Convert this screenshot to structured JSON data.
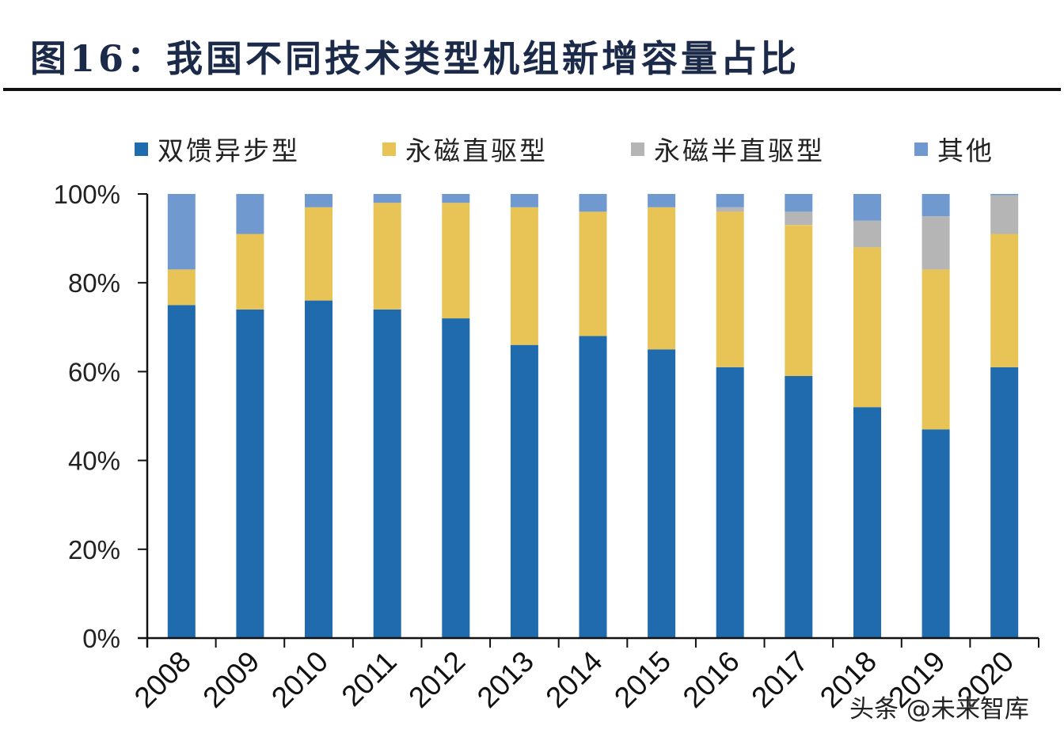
{
  "title": "图16：我国不同技术类型机组新增容量占比",
  "watermark": "头条 @未来智库",
  "colors": {
    "series": [
      "#1f6bad",
      "#e8c457",
      "#b5b5b5",
      "#7099d0"
    ],
    "axis": "#111111",
    "title": "#1b2a49"
  },
  "chart_data": {
    "type": "bar",
    "stacked": true,
    "title": "图16：我国不同技术类型机组新增容量占比",
    "xlabel": "",
    "ylabel": "",
    "ylim": [
      0,
      100
    ],
    "y_ticks": [
      "0%",
      "20%",
      "40%",
      "60%",
      "80%",
      "100%"
    ],
    "y_tick_values": [
      0,
      20,
      40,
      60,
      80,
      100
    ],
    "grid": false,
    "legend_position": "top",
    "categories": [
      "2008",
      "2009",
      "2010",
      "2011",
      "2012",
      "2013",
      "2014",
      "2015",
      "2016",
      "2017",
      "2018",
      "2019",
      "2020"
    ],
    "series": [
      {
        "name": "双馈异步型",
        "values": [
          75,
          74,
          76,
          74,
          72,
          66,
          68,
          65,
          61,
          59,
          52,
          47,
          61
        ]
      },
      {
        "name": "永磁直驱型",
        "values": [
          8,
          17,
          21,
          24,
          26,
          31,
          28,
          32,
          35,
          34,
          36,
          36,
          30
        ]
      },
      {
        "name": "永磁半直驱型",
        "values": [
          0,
          0,
          0,
          0,
          0,
          0,
          0,
          0,
          1,
          3,
          6,
          12,
          8.7
        ]
      },
      {
        "name": "其他",
        "values": [
          17,
          9,
          3,
          2,
          2,
          3,
          4,
          3,
          3,
          4,
          6,
          5,
          0.3
        ]
      }
    ]
  }
}
